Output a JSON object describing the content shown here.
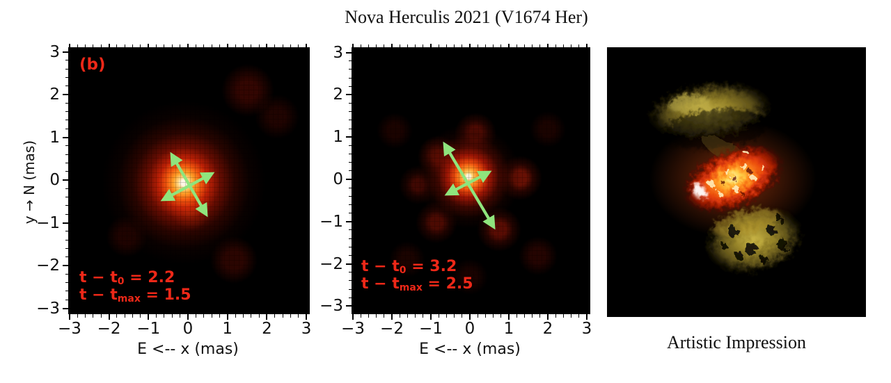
{
  "header": {
    "title": "Nova Herculis 2021 (V1674 Her)"
  },
  "colors": {
    "annotation_red": "#ee2818",
    "arrow_green": "#8fe57d",
    "panel_background": "#000000",
    "figure_background": "#ffffff",
    "core_white": "#fff7e6",
    "core_orange": "#ff9a28",
    "halo_red": "#c81e05",
    "lobe_olive": "#a08c2c"
  },
  "chart_data": [
    {
      "type": "heatmap",
      "name": "interferometric-image-epoch-1",
      "panel_label": "(b)",
      "xlabel": "E <-- x (mas)",
      "ylabel": "y → N (mas)",
      "xlim": [
        -3,
        3
      ],
      "ylim": [
        -3,
        3
      ],
      "xticks": [
        -3,
        -2,
        -1,
        0,
        1,
        2,
        3
      ],
      "yticks": [
        3,
        2,
        1,
        0,
        -1,
        -2,
        -3
      ],
      "minor_tick_step": 0.2,
      "grid": false,
      "annotations": [
        {
          "prefix": "t − t",
          "sub": "0",
          "suffix": " = 2.2"
        },
        {
          "prefix": "t − t",
          "sub": "max",
          "suffix": " = 1.5"
        }
      ],
      "content": "compact pixelated orange-red emission blob with white-hot core centered near (0, 0) mas; two crossed light-green double-headed arrows mark the expansion axes"
    },
    {
      "type": "heatmap",
      "name": "interferometric-image-epoch-2",
      "panel_label": "",
      "xlabel": "E <-- x (mas)",
      "ylabel": "",
      "xlim": [
        -3,
        3
      ],
      "ylim": [
        -3,
        3
      ],
      "xticks": [
        -3,
        -2,
        -1,
        0,
        1,
        2,
        3
      ],
      "yticks": [
        3,
        2,
        1,
        0,
        -1,
        -2,
        -3
      ],
      "minor_tick_step": 0.2,
      "grid": false,
      "annotations": [
        {
          "prefix": "t − t",
          "sub": "0",
          "suffix": " = 3.2"
        },
        {
          "prefix": "t − t",
          "sub": "max",
          "suffix": " = 2.5"
        }
      ],
      "content": "smaller bright core at (0, 0) mas surrounded by a clumpy ring of faint red knots at about 1 mas radius; longer crossed light-green double-headed arrows"
    },
    {
      "type": "image",
      "name": "artistic-impression",
      "caption": "Artistic Impression",
      "content": "bright mottled orange-red central ellipse of ejecta flanked by two cratered olive-yellow bipolar lobes on a black background"
    }
  ]
}
